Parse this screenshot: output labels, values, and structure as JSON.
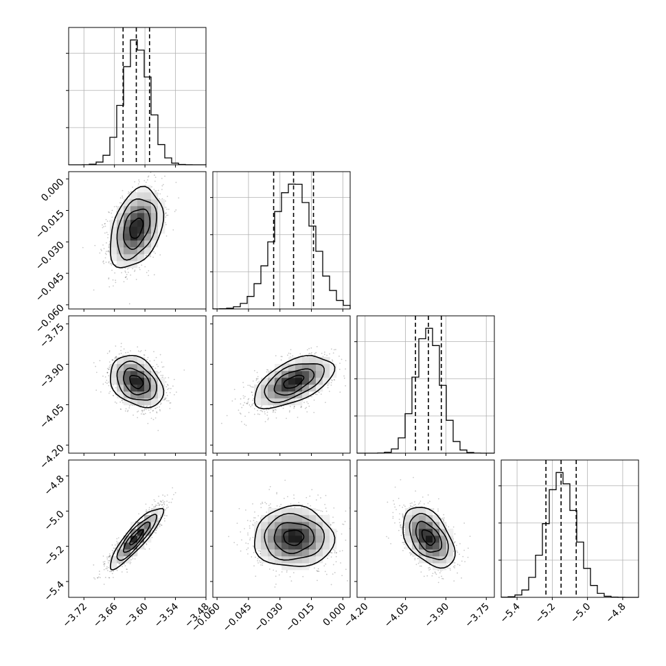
{
  "chart_data": {
    "type": "corner",
    "parameters": [
      {
        "mean": -3.617,
        "sigma": 0.026,
        "range": [
          -3.75,
          -3.48
        ],
        "ticks": [
          "−3.72",
          "−3.66",
          "−3.60",
          "−3.54",
          "−3.48"
        ],
        "tick_values": [
          -3.72,
          -3.66,
          -3.6,
          -3.54,
          -3.48
        ],
        "quantiles": [
          -3.643,
          -3.617,
          -3.591
        ]
      },
      {
        "mean": -0.0235,
        "sigma": 0.0095,
        "range": [
          -0.062,
          0.0035
        ],
        "ticks": [
          "−0.060",
          "−0.045",
          "−0.030",
          "−0.015",
          "0.000"
        ],
        "tick_values": [
          -0.06,
          -0.045,
          -0.03,
          -0.015,
          0.0
        ],
        "quantiles": [
          -0.033,
          -0.0235,
          -0.014
        ]
      },
      {
        "mean": -3.965,
        "sigma": 0.048,
        "range": [
          -4.23,
          -3.72
        ],
        "ticks": [
          "−4.20",
          "−4.05",
          "−3.90",
          "−3.75"
        ],
        "tick_values": [
          -4.2,
          -4.05,
          -3.9,
          -3.75
        ],
        "quantiles": [
          -4.013,
          -3.965,
          -3.917
        ]
      },
      {
        "mean": -5.15,
        "sigma": 0.086,
        "range": [
          -5.49,
          -4.71
        ],
        "ticks": [
          "−5.4",
          "−5.2",
          "−5.0",
          "−4.8"
        ],
        "tick_values": [
          -5.4,
          -5.2,
          -5.0,
          -4.8
        ],
        "quantiles": [
          -5.236,
          -5.15,
          -5.064
        ]
      }
    ],
    "correlations": {
      "1-0": 0.35,
      "2-0": -0.32,
      "2-1": 0.55,
      "3-0": 0.88,
      "3-1": 0.0,
      "3-2": -0.45
    },
    "diagonal": "1D histograms with dashed lines at the 16th, 50th and 84th percentiles",
    "off_diagonal": "2D density histograms with contours and scatter points",
    "grid": true
  }
}
